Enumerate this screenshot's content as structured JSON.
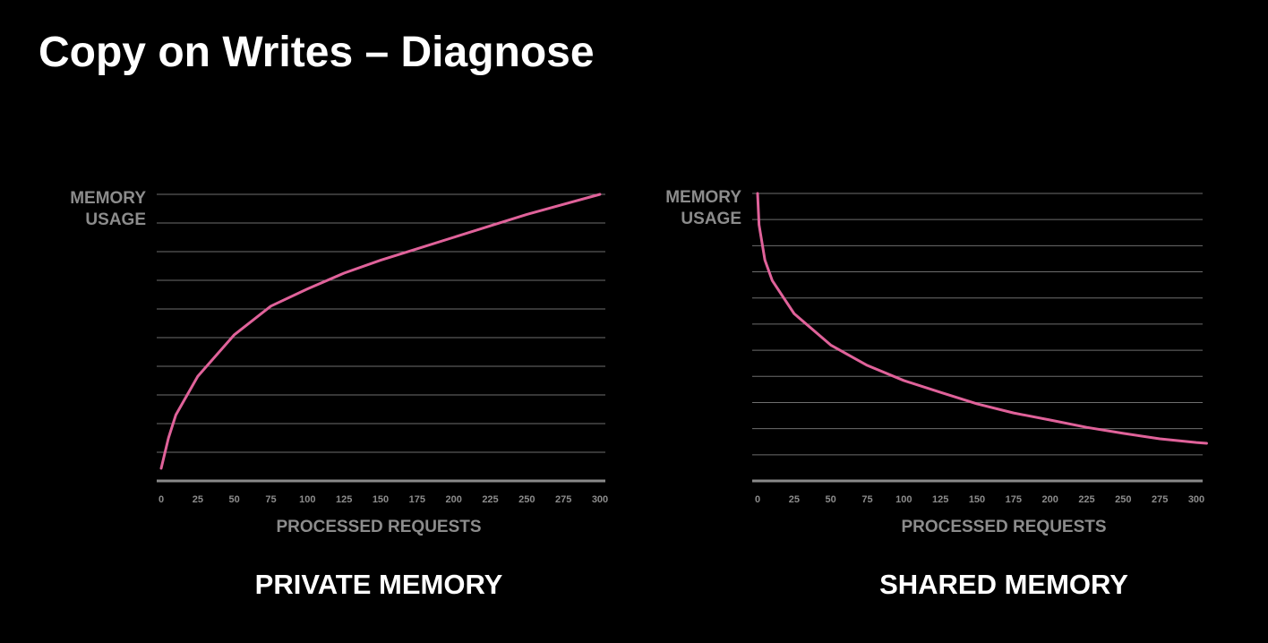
{
  "title": "Copy on Writes – Diagnose",
  "chart_data": [
    {
      "type": "line",
      "title": "PRIVATE MEMORY",
      "xlabel": "PROCESSED REQUESTS",
      "ylabel": [
        "MEMORY",
        "USAGE"
      ],
      "xlim": [
        0,
        300
      ],
      "xticks": [
        0,
        25,
        50,
        75,
        100,
        125,
        150,
        175,
        200,
        225,
        250,
        275,
        300
      ],
      "ylim": [
        0,
        10
      ],
      "ygrid": [
        0,
        1,
        2,
        3,
        4,
        5,
        6,
        7,
        8,
        9,
        10
      ],
      "grid": true,
      "series": [
        {
          "color": "#e0629a",
          "x": [
            0,
            5,
            10,
            25,
            50,
            75,
            100,
            125,
            150,
            175,
            200,
            225,
            250,
            275,
            300
          ],
          "values": [
            0.44,
            1.5,
            2.3,
            3.65,
            5.1,
            6.1,
            6.7,
            7.25,
            7.7,
            8.1,
            8.5,
            8.9,
            9.3,
            9.65,
            10
          ]
        }
      ]
    },
    {
      "type": "line",
      "title": "SHARED MEMORY",
      "xlabel": "PROCESSED REQUESTS",
      "ylabel": [
        "MEMORY",
        "USAGE"
      ],
      "xlim": [
        0,
        300
      ],
      "xticks": [
        0,
        25,
        50,
        75,
        100,
        125,
        150,
        175,
        200,
        225,
        250,
        275,
        300
      ],
      "ylim": [
        0,
        11
      ],
      "ygrid": [
        0,
        1,
        2,
        3,
        4,
        5,
        6,
        7,
        8,
        9,
        10,
        11
      ],
      "grid": true,
      "series": [
        {
          "color": "#e0629a",
          "x": [
            0,
            1,
            5,
            10,
            25,
            50,
            75,
            100,
            125,
            150,
            175,
            200,
            225,
            250,
            275,
            300,
            307
          ],
          "values": [
            11,
            9.8,
            8.45,
            7.67,
            6.4,
            5.2,
            4.42,
            3.84,
            3.39,
            2.95,
            2.6,
            2.33,
            2.05,
            1.82,
            1.61,
            1.47,
            1.44
          ]
        }
      ]
    }
  ]
}
